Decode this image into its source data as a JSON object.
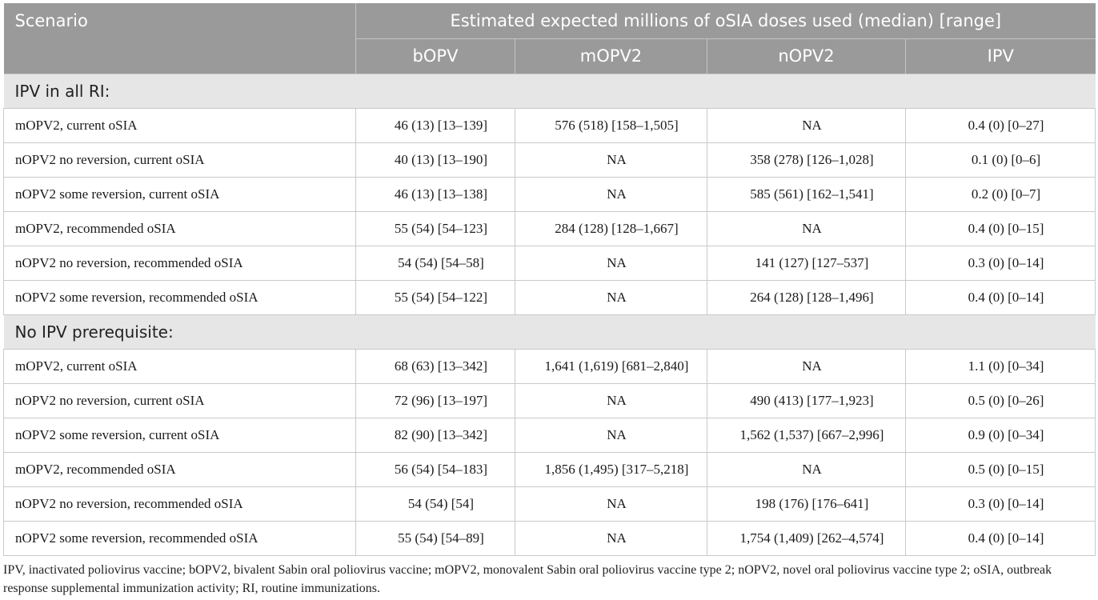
{
  "header": {
    "scenario": "Scenario",
    "span": "Estimated expected millions of oSIA doses used (median) [range]",
    "columns": [
      "bOPV",
      "mOPV2",
      "nOPV2",
      "IPV"
    ]
  },
  "sections": [
    {
      "title": "IPV in all RI:",
      "rows": [
        {
          "scenario": "mOPV2, current oSIA",
          "bopv": "46 (13) [13–139]",
          "mopv2": "576 (518) [158–1,505]",
          "nopv2": "NA",
          "ipv": "0.4 (0) [0–27]"
        },
        {
          "scenario": "nOPV2 no reversion, current oSIA",
          "bopv": "40 (13) [13–190]",
          "mopv2": "NA",
          "nopv2": "358 (278) [126–1,028]",
          "ipv": "0.1 (0) [0–6]"
        },
        {
          "scenario": "nOPV2 some reversion, current oSIA",
          "bopv": "46 (13) [13–138]",
          "mopv2": "NA",
          "nopv2": "585 (561) [162–1,541]",
          "ipv": "0.2 (0) [0–7]"
        },
        {
          "scenario": "mOPV2, recommended oSIA",
          "bopv": "55 (54) [54–123]",
          "mopv2": "284 (128) [128–1,667]",
          "nopv2": "NA",
          "ipv": "0.4 (0) [0–15]"
        },
        {
          "scenario": "nOPV2 no reversion, recommended oSIA",
          "bopv": "54 (54) [54–58]",
          "mopv2": "NA",
          "nopv2": "141 (127) [127–537]",
          "ipv": "0.3 (0) [0–14]"
        },
        {
          "scenario": "nOPV2 some reversion, recommended oSIA",
          "bopv": "55 (54) [54–122]",
          "mopv2": "NA",
          "nopv2": "264 (128) [128–1,496]",
          "ipv": "0.4 (0) [0–14]"
        }
      ]
    },
    {
      "title": "No IPV prerequisite:",
      "rows": [
        {
          "scenario": "mOPV2, current oSIA",
          "bopv": "68 (63) [13–342]",
          "mopv2": "1,641 (1,619) [681–2,840]",
          "nopv2": "NA",
          "ipv": "1.1 (0) [0–34]"
        },
        {
          "scenario": "nOPV2 no reversion, current oSIA",
          "bopv": "72 (96) [13–197]",
          "mopv2": "NA",
          "nopv2": "490 (413) [177–1,923]",
          "ipv": "0.5 (0) [0–26]"
        },
        {
          "scenario": "nOPV2 some reversion, current oSIA",
          "bopv": "82 (90) [13–342]",
          "mopv2": "NA",
          "nopv2": "1,562 (1,537) [667–2,996]",
          "ipv": "0.9 (0) [0–34]"
        },
        {
          "scenario": "mOPV2, recommended oSIA",
          "bopv": "56 (54) [54–183]",
          "mopv2": "1,856 (1,495) [317–5,218]",
          "nopv2": "NA",
          "ipv": "0.5 (0) [0–15]"
        },
        {
          "scenario": "nOPV2 no reversion, recommended oSIA",
          "bopv": "54 (54) [54]",
          "mopv2": "NA",
          "nopv2": "198 (176) [176–641]",
          "ipv": "0.3 (0) [0–14]"
        },
        {
          "scenario": "nOPV2 some reversion, recommended oSIA",
          "bopv": "55 (54) [54–89]",
          "mopv2": "NA",
          "nopv2": "1,754 (1,409) [262–4,574]",
          "ipv": "0.4 (0) [0–14]"
        }
      ]
    }
  ],
  "footnote": "IPV, inactivated poliovirus vaccine; bOPV2, bivalent Sabin oral poliovirus vaccine; mOPV2, monovalent Sabin oral poliovirus vaccine type 2; nOPV2, novel oral poliovirus vaccine type 2; oSIA, outbreak response supplemental immunization activity; RI, routine immunizations."
}
